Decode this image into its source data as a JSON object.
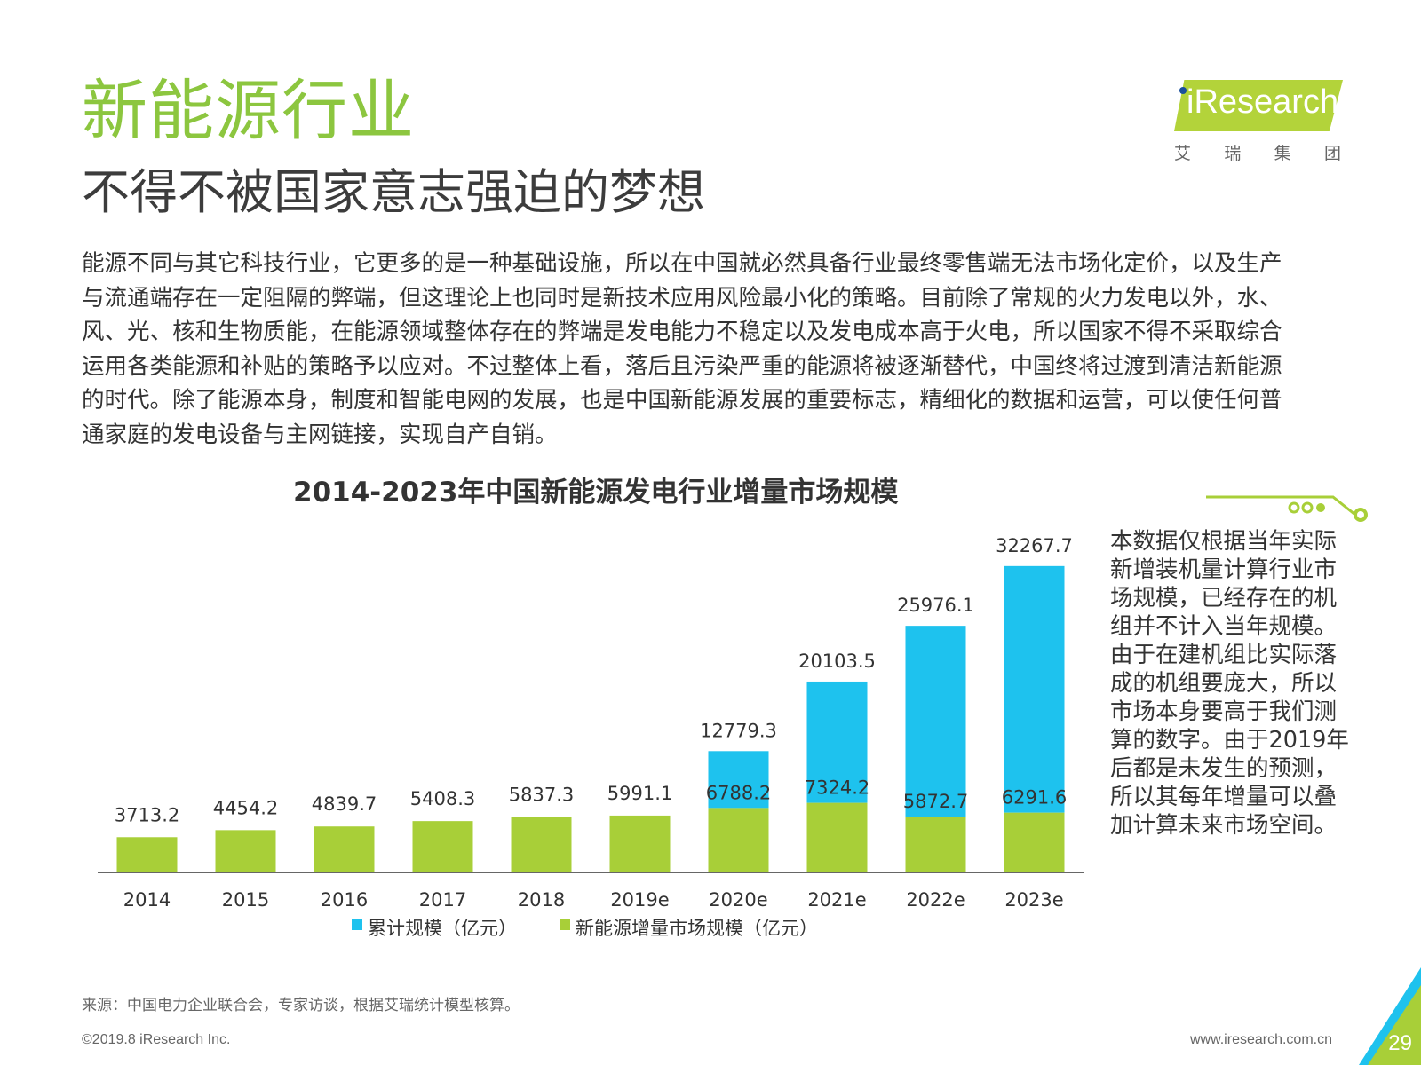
{
  "header": {
    "title": "新能源行业",
    "subtitle": "不得不被国家意志强迫的梦想",
    "logo": {
      "text": "iResearch",
      "chinese": [
        "艾",
        "瑞",
        "集",
        "团"
      ],
      "accent_color": "#b3d33a"
    }
  },
  "body_lines": [
    "能源不同与其它科技行业，它更多的是一种基础设施，所以在中国就必然具备行业最终零售端无法市场化定价，以及生产",
    "与流通端存在一定阻隔的弊端，但这理论上也同时是新技术应用风险最小化的策略。目前除了常规的火力发电以外，水、",
    "风、光、核和生物质能，在能源领域整体存在的弊端是发电能力不稳定以及发电成本高于火电，所以国家不得不采取综合",
    "运用各类能源和补贴的策略予以应对。不过整体上看，落后且污染严重的能源将被逐渐替代，中国终将过渡到清洁新能源",
    "的时代。除了能源本身，制度和智能电网的发展，也是中国新能源发展的重要标志，精细化的数据和运营，可以使任何普",
    "通家庭的发电设备与主网链接，实现自产自销。"
  ],
  "chart_data": {
    "type": "bar",
    "stacked": true,
    "title": "2014-2023年中国新能源发电行业增量市场规模",
    "categories": [
      "2014",
      "2015",
      "2016",
      "2017",
      "2018",
      "2019e",
      "2020e",
      "2021e",
      "2022e",
      "2023e"
    ],
    "series": [
      {
        "name": "新能源增量市场规模（亿元）",
        "color": "#a8cf38",
        "values": [
          3713.2,
          4454.2,
          4839.7,
          5408.3,
          5837.3,
          5991.1,
          6788.2,
          7324.2,
          5872.7,
          6291.6
        ]
      },
      {
        "name": "累计规模（亿元）",
        "color": "#1ec2ee",
        "totals": [
          null,
          null,
          null,
          null,
          null,
          null,
          12779.3,
          20103.5,
          25976.1,
          32267.7
        ]
      }
    ],
    "legend": [
      "累计规模（亿元）",
      "新能源增量市场规模（亿元）"
    ],
    "legend_position": "bottom",
    "grid": false,
    "ylim": [
      0,
      33000
    ]
  },
  "note_lines": [
    "本数据仅根据当年实际",
    "新增装机量计算行业市",
    "场规模，已经存在的机",
    "组并不计入当年规模。",
    "由于在建机组比实际落",
    "成的机组要庞大，所以",
    "市场本身要高于我们测",
    "算的数字。由于2019年",
    "后都是未发生的预测，",
    "所以其每年增量可以叠",
    "加计算未来市场空间。"
  ],
  "footer": {
    "source": "来源：中国电力企业联合会，专家访谈，根据艾瑞统计模型核算。",
    "copyright": "©2019.8 iResearch Inc.",
    "website": "www.iresearch.com.cn",
    "page_number": "29"
  }
}
